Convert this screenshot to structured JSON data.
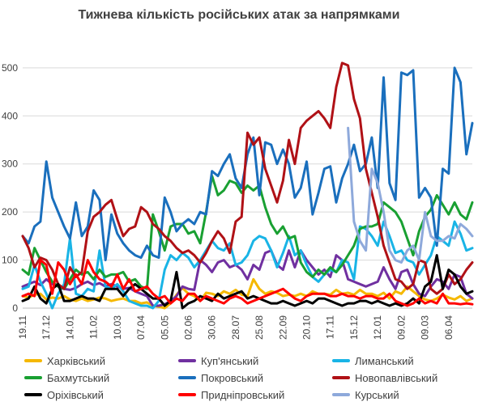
{
  "chart_data": {
    "type": "line",
    "title": "Тижнева кількість російських атак за напрямками",
    "xlabel": "",
    "ylabel": "",
    "ylim": [
      0,
      520
    ],
    "yticks": [
      0,
      100,
      200,
      300,
      400,
      500
    ],
    "grid": true,
    "legend_position": "bottom",
    "x_tick_labels": [
      "19.11",
      "17.12",
      "14.01",
      "11.02",
      "10.03",
      "07.04",
      "05.05",
      "02.06",
      "30.06",
      "28.07",
      "25.08",
      "22.09",
      "20.10",
      "17.11",
      "15.12",
      "12.01",
      "09.02",
      "09.03",
      "06.04"
    ],
    "x_tick_index": [
      0,
      4,
      8,
      12,
      16,
      20,
      24,
      28,
      32,
      36,
      40,
      44,
      48,
      52,
      56,
      60,
      64,
      68,
      72
    ],
    "n_points": 77,
    "series": [
      {
        "name": "Харківський",
        "color": "#f5b800",
        "values": [
          25,
          22,
          28,
          30,
          18,
          22,
          20,
          25,
          18,
          15,
          20,
          15,
          18,
          22,
          20,
          15,
          18,
          20,
          15,
          15,
          10,
          12,
          5,
          3,
          0,
          10,
          28,
          42,
          30,
          25,
          15,
          32,
          30,
          25,
          35,
          30,
          38,
          28,
          25,
          60,
          40,
          30,
          35,
          32,
          25,
          28,
          25,
          30,
          25,
          35,
          30,
          30,
          28,
          38,
          30,
          32,
          28,
          38,
          30,
          30,
          25,
          32,
          20,
          35,
          30,
          45,
          35,
          25,
          18,
          15,
          20,
          28,
          22,
          18,
          25,
          15,
          20
        ]
      },
      {
        "name": "Куп'янський",
        "color": "#7030a0",
        "values": [
          45,
          50,
          55,
          48,
          60,
          50,
          45,
          40,
          38,
          42,
          50,
          55,
          48,
          52,
          45,
          50,
          45,
          40,
          42,
          35,
          30,
          25,
          5,
          5,
          8,
          15,
          25,
          45,
          40,
          38,
          100,
          90,
          75,
          95,
          100,
          85,
          90,
          80,
          60,
          90,
          80,
          115,
          120,
          90,
          80,
          120,
          85,
          120,
          100,
          85,
          70,
          80,
          65,
          110,
          100,
          60,
          55,
          50,
          45,
          50,
          55,
          85,
          60,
          40,
          75,
          80,
          50,
          30,
          25,
          45,
          60,
          55,
          40,
          70,
          65,
          30,
          20
        ]
      },
      {
        "name": "Лиманський",
        "color": "#19b4e6",
        "values": [
          40,
          45,
          90,
          55,
          30,
          0,
          30,
          50,
          145,
          30,
          25,
          40,
          35,
          120,
          45,
          40,
          50,
          35,
          15,
          10,
          5,
          5,
          0,
          15,
          80,
          110,
          100,
          115,
          105,
          85,
          100,
          120,
          140,
          125,
          120,
          135,
          90,
          95,
          110,
          140,
          150,
          145,
          120,
          85,
          115,
          150,
          110,
          120,
          90,
          65,
          55,
          70,
          80,
          75,
          100,
          95,
          60,
          170,
          165,
          150,
          130,
          180,
          150,
          115,
          120,
          100,
          95,
          70,
          90,
          110,
          150,
          140,
          130,
          180,
          155,
          120,
          125
        ]
      },
      {
        "name": "Бахмутський",
        "color": "#19a032",
        "values": [
          80,
          70,
          125,
          100,
          75,
          55,
          45,
          40,
          60,
          80,
          70,
          75,
          60,
          80,
          65,
          70,
          70,
          75,
          55,
          60,
          45,
          40,
          195,
          160,
          120,
          170,
          175,
          175,
          155,
          160,
          135,
          200,
          275,
          235,
          245,
          265,
          260,
          240,
          255,
          245,
          255,
          210,
          175,
          155,
          170,
          145,
          150,
          95,
          75,
          65,
          80,
          70,
          85,
          75,
          90,
          110,
          130,
          165,
          170,
          170,
          175,
          220,
          210,
          200,
          180,
          145,
          110,
          160,
          190,
          205,
          235,
          215,
          195,
          220,
          195,
          185,
          220
        ]
      },
      {
        "name": "Покровський",
        "color": "#1a6fbd",
        "values": [
          150,
          135,
          170,
          180,
          305,
          230,
          200,
          170,
          145,
          220,
          150,
          170,
          245,
          225,
          100,
          195,
          155,
          135,
          120,
          110,
          105,
          130,
          110,
          105,
          230,
          200,
          160,
          175,
          185,
          175,
          200,
          195,
          285,
          275,
          300,
          320,
          270,
          250,
          320,
          355,
          235,
          345,
          340,
          300,
          330,
          300,
          230,
          250,
          305,
          195,
          240,
          290,
          295,
          220,
          270,
          300,
          340,
          285,
          300,
          355,
          250,
          480,
          260,
          225,
          490,
          485,
          495,
          230,
          250,
          230,
          130,
          290,
          280,
          500,
          470,
          320,
          385
        ]
      },
      {
        "name": "Новопавлівський",
        "color": "#b01116",
        "values": [
          150,
          125,
          85,
          105,
          100,
          80,
          50,
          40,
          85,
          65,
          75,
          160,
          190,
          200,
          215,
          225,
          185,
          150,
          165,
          170,
          210,
          200,
          175,
          165,
          150,
          140,
          125,
          115,
          120,
          110,
          95,
          115,
          140,
          160,
          145,
          115,
          180,
          190,
          365,
          340,
          355,
          290,
          255,
          220,
          265,
          350,
          300,
          375,
          390,
          400,
          410,
          395,
          375,
          460,
          510,
          505,
          435,
          395,
          290,
          240,
          190,
          130,
          95,
          60,
          55,
          40,
          50,
          100,
          95,
          40,
          30,
          40,
          70,
          50,
          60,
          80,
          95
        ]
      },
      {
        "name": "Оріхівський",
        "color": "#000000",
        "values": [
          15,
          20,
          45,
          20,
          10,
          40,
          50,
          15,
          15,
          20,
          25,
          20,
          20,
          15,
          40,
          40,
          40,
          25,
          40,
          50,
          40,
          30,
          20,
          20,
          5,
          15,
          75,
          0,
          10,
          15,
          25,
          20,
          15,
          30,
          20,
          25,
          30,
          35,
          20,
          25,
          20,
          15,
          10,
          10,
          15,
          10,
          5,
          10,
          15,
          10,
          20,
          20,
          15,
          10,
          5,
          10,
          10,
          15,
          15,
          10,
          15,
          10,
          5,
          10,
          5,
          10,
          20,
          10,
          45,
          55,
          110,
          40,
          80,
          70,
          45,
          30,
          35
        ]
      },
      {
        "name": "Придніпровський",
        "color": "#ff0000",
        "values": [
          25,
          30,
          25,
          100,
          90,
          30,
          95,
          80,
          50,
          70,
          50,
          100,
          75,
          60,
          55,
          45,
          70,
          40,
          60,
          35,
          40,
          45,
          30,
          20,
          25,
          10,
          20,
          15,
          30,
          30,
          15,
          25,
          20,
          15,
          10,
          20,
          25,
          20,
          10,
          15,
          20,
          25,
          30,
          35,
          40,
          30,
          20,
          15,
          25,
          30,
          30,
          30,
          25,
          25,
          30,
          25,
          25,
          20,
          25,
          25,
          20,
          20,
          30,
          15,
          10,
          5,
          10,
          20,
          10,
          15,
          10,
          30,
          10,
          10,
          8,
          10,
          8
        ]
      },
      {
        "name": "Курський",
        "color": "#8ea9db",
        "values": [
          null,
          null,
          null,
          null,
          null,
          null,
          null,
          null,
          null,
          null,
          null,
          null,
          null,
          null,
          null,
          null,
          null,
          null,
          null,
          null,
          null,
          null,
          null,
          null,
          null,
          null,
          null,
          null,
          null,
          null,
          null,
          null,
          null,
          null,
          null,
          null,
          null,
          null,
          null,
          null,
          null,
          null,
          null,
          null,
          null,
          null,
          null,
          null,
          null,
          null,
          null,
          null,
          null,
          null,
          null,
          375,
          180,
          140,
          120,
          290,
          260,
          200,
          120,
          100,
          95,
          120,
          130,
          100,
          200,
          150,
          140,
          140,
          150,
          145,
          175,
          165,
          150
        ]
      }
    ]
  }
}
